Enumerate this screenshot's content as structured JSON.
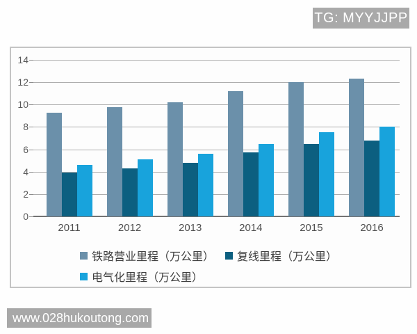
{
  "badge": {
    "text": "TG: MYYJJPP",
    "bg": "#a9a9a9",
    "color": "#ffffff"
  },
  "watermark": {
    "text": "www.028hukoutong.com",
    "bg": "#a8a8a8",
    "color": "#ffffff"
  },
  "chart_data": {
    "type": "bar",
    "title": "",
    "xlabel": "",
    "ylabel": "",
    "categories": [
      "2011",
      "2012",
      "2013",
      "2014",
      "2015",
      "2016"
    ],
    "series": [
      {
        "name": "铁路营业里程（万公里）",
        "color": "#6b90aa",
        "values": [
          9.3,
          9.8,
          10.2,
          11.2,
          12.0,
          12.3
        ]
      },
      {
        "name": "复线里程（万公里）",
        "color": "#0c5f80",
        "values": [
          3.9,
          4.3,
          4.8,
          5.7,
          6.5,
          6.8
        ]
      },
      {
        "name": "电气化里程（万公里）",
        "color": "#18a3dc",
        "values": [
          4.6,
          5.1,
          5.6,
          6.5,
          7.5,
          8.0
        ]
      }
    ],
    "ylim": [
      0,
      14
    ],
    "yticks": [
      0,
      2,
      4,
      6,
      8,
      10,
      12,
      14
    ],
    "grid": true,
    "gridline_color": "#adadad",
    "axis_line_color": "#737373",
    "tick_label_color": "#595959",
    "legend_position": "bottom",
    "legend_rows": [
      [
        0,
        1
      ],
      [
        2
      ]
    ]
  }
}
